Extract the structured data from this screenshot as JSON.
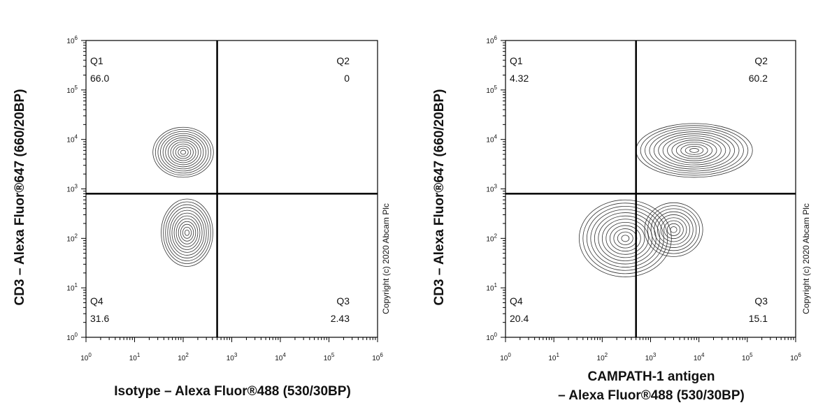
{
  "chart_data": [
    {
      "type": "scatter",
      "subtype": "flow-cytometry-contour",
      "xlabel": [
        "Isotype – Alexa Fluor®488 (530/30BP)"
      ],
      "ylabel": "CD3 – Alexa Fluor®647 (660/20BP)",
      "x_scale": "log",
      "y_scale": "log",
      "xlim": [
        1,
        1000000
      ],
      "ylim": [
        1,
        1000000
      ],
      "x_ticks": [
        "10",
        "10",
        "10",
        "10",
        "10",
        "10",
        "10"
      ],
      "x_tick_exponents": [
        "0",
        "1",
        "2",
        "3",
        "4",
        "5",
        "6"
      ],
      "y_ticks": [
        "10",
        "10",
        "10",
        "10",
        "10",
        "10",
        "10"
      ],
      "y_tick_exponents": [
        "0",
        "1",
        "2",
        "3",
        "4",
        "5",
        "6"
      ],
      "gate": {
        "x": 500,
        "y": 800
      },
      "quadrants": [
        {
          "name": "Q1",
          "percent": "66.0"
        },
        {
          "name": "Q2",
          "percent": "0"
        },
        {
          "name": "Q3",
          "percent": "2.43"
        },
        {
          "name": "Q4",
          "percent": "31.6"
        }
      ],
      "populations": [
        {
          "center": [
            100,
            5500
          ],
          "spread_x": 4.2,
          "spread_y": 3.2,
          "rings": 12
        },
        {
          "center": [
            120,
            130
          ],
          "spread_x": 3.4,
          "spread_y": 4.8,
          "rings": 12
        }
      ],
      "copyright": "Copyright (c) 2020 Abcam Plc"
    },
    {
      "type": "scatter",
      "subtype": "flow-cytometry-contour",
      "xlabel": [
        "CAMPATH-1 antigen",
        "– Alexa Fluor®488 (530/30BP)"
      ],
      "ylabel": "CD3 – Alexa Fluor®647 (660/20BP)",
      "x_scale": "log",
      "y_scale": "log",
      "xlim": [
        1,
        1000000
      ],
      "ylim": [
        1,
        1000000
      ],
      "x_ticks": [
        "10",
        "10",
        "10",
        "10",
        "10",
        "10",
        "10"
      ],
      "x_tick_exponents": [
        "0",
        "1",
        "2",
        "3",
        "4",
        "5",
        "6"
      ],
      "y_ticks": [
        "10",
        "10",
        "10",
        "10",
        "10",
        "10",
        "10"
      ],
      "y_tick_exponents": [
        "0",
        "1",
        "2",
        "3",
        "4",
        "5",
        "6"
      ],
      "gate": {
        "x": 500,
        "y": 800
      },
      "quadrants": [
        {
          "name": "Q1",
          "percent": "4.32"
        },
        {
          "name": "Q2",
          "percent": "60.2"
        },
        {
          "name": "Q3",
          "percent": "15.1"
        },
        {
          "name": "Q4",
          "percent": "20.4"
        }
      ],
      "populations": [
        {
          "center": [
            8000,
            6000
          ],
          "spread_x": 16,
          "spread_y": 3.5,
          "rings": 13
        },
        {
          "center": [
            300,
            100
          ],
          "spread_x": 9,
          "spread_y": 6,
          "rings": 12
        },
        {
          "center": [
            3000,
            150
          ],
          "spread_x": 4,
          "spread_y": 3.5,
          "rings": 9
        }
      ],
      "copyright": "Copyright (c) 2020 Abcam Plc"
    }
  ]
}
